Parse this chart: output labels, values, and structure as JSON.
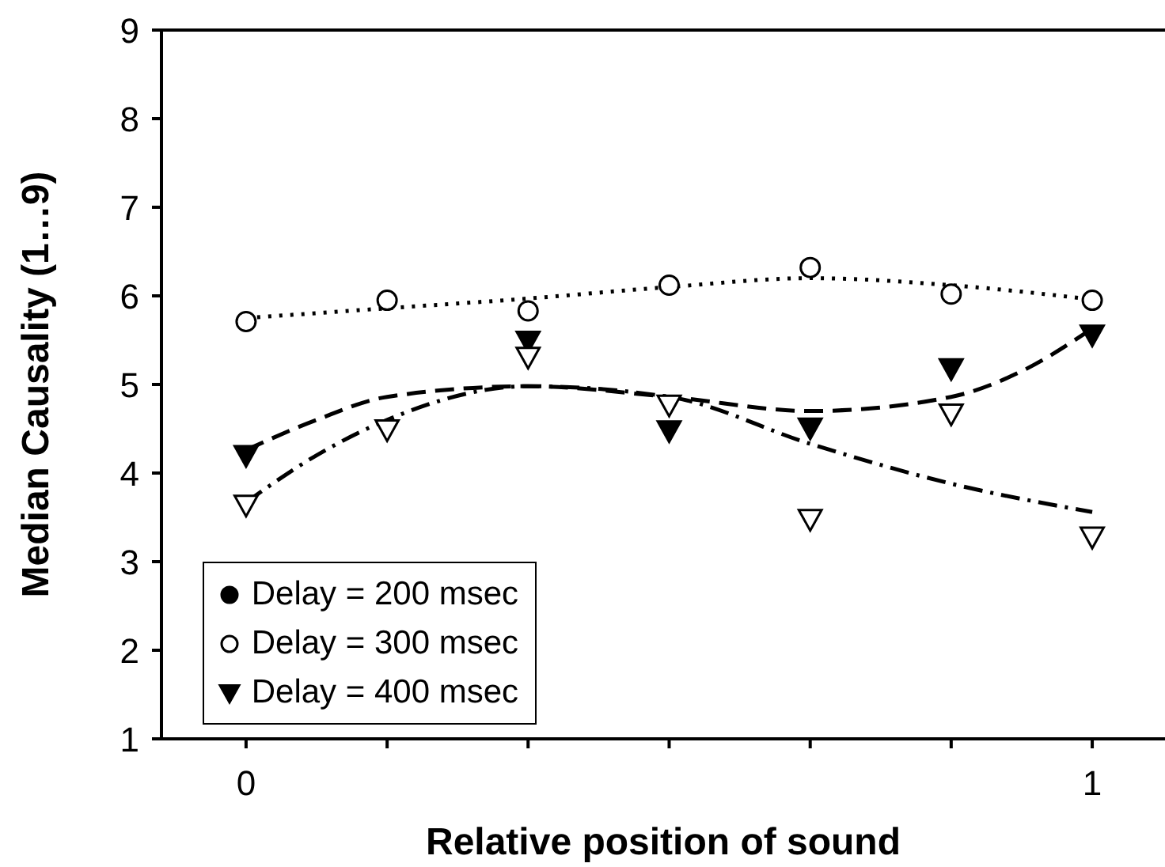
{
  "chart_data": {
    "type": "scatter",
    "xlabel": "Relative position of sound",
    "ylabel": "Median Causality (1…9)",
    "xlim": [
      -0.1,
      1.086
    ],
    "ylim": [
      1,
      9
    ],
    "xticks": [
      0,
      {
        "value": 0.1667,
        "label": null
      },
      {
        "value": 0.3333,
        "label": null
      },
      {
        "value": 0.5,
        "label": null
      },
      {
        "value": 0.6667,
        "label": null
      },
      {
        "value": 0.8333,
        "label": null
      },
      1
    ],
    "yticks": [
      1,
      2,
      3,
      4,
      5,
      6,
      7,
      8,
      9
    ],
    "grid": false,
    "legend": "bottom left",
    "x": [
      0,
      0.1667,
      0.3333,
      0.5,
      0.6667,
      0.8333,
      1
    ],
    "series": [
      {
        "name": "Delay = 200 msec",
        "marker": "circle",
        "color": "#000000",
        "values": [
          null,
          null,
          null,
          null,
          null,
          null,
          null
        ]
      },
      {
        "name": "Delay = 300 msec",
        "marker": "circle",
        "color": "#ffffff",
        "values": [
          5.71,
          5.95,
          5.83,
          6.12,
          6.32,
          6.02,
          5.95
        ]
      },
      {
        "name": "Delay = 400 msec",
        "marker": "triangle",
        "color": "#000000",
        "values": [
          4.2,
          null,
          5.49,
          4.48,
          4.51,
          5.18,
          5.56
        ]
      },
      {
        "marker": "triangle",
        "color": "#ffffff",
        "values": [
          3.64,
          4.49,
          5.31,
          4.77,
          3.48,
          4.67,
          3.28
        ]
      },
      {
        "type": "line",
        "marker": "none",
        "line_style": "dotted",
        "color": "#000000",
        "x": [
          0,
          0.1667,
          0.3333,
          0.5,
          0.6667,
          0.8333,
          1
        ],
        "values": [
          5.75,
          5.86,
          5.97,
          6.1,
          6.2,
          6.12,
          5.96
        ]
      },
      {
        "type": "line",
        "marker": "none",
        "line_style": "dashed",
        "color": "#000000",
        "x": [
          0,
          0.0833,
          0.1667,
          0.3333,
          0.5,
          0.6667,
          0.8333,
          0.9167,
          1
        ],
        "values": [
          4.26,
          4.6,
          4.86,
          4.98,
          4.86,
          4.7,
          4.86,
          5.15,
          5.63
        ]
      },
      {
        "type": "line",
        "marker": "none",
        "line_style": "dashdot",
        "color": "#000000",
        "x": [
          0,
          0.0833,
          0.1667,
          0.3333,
          0.5,
          0.6667,
          0.8333,
          1
        ],
        "values": [
          3.67,
          4.2,
          4.6,
          4.98,
          4.86,
          4.33,
          3.88,
          3.56
        ]
      }
    ]
  }
}
